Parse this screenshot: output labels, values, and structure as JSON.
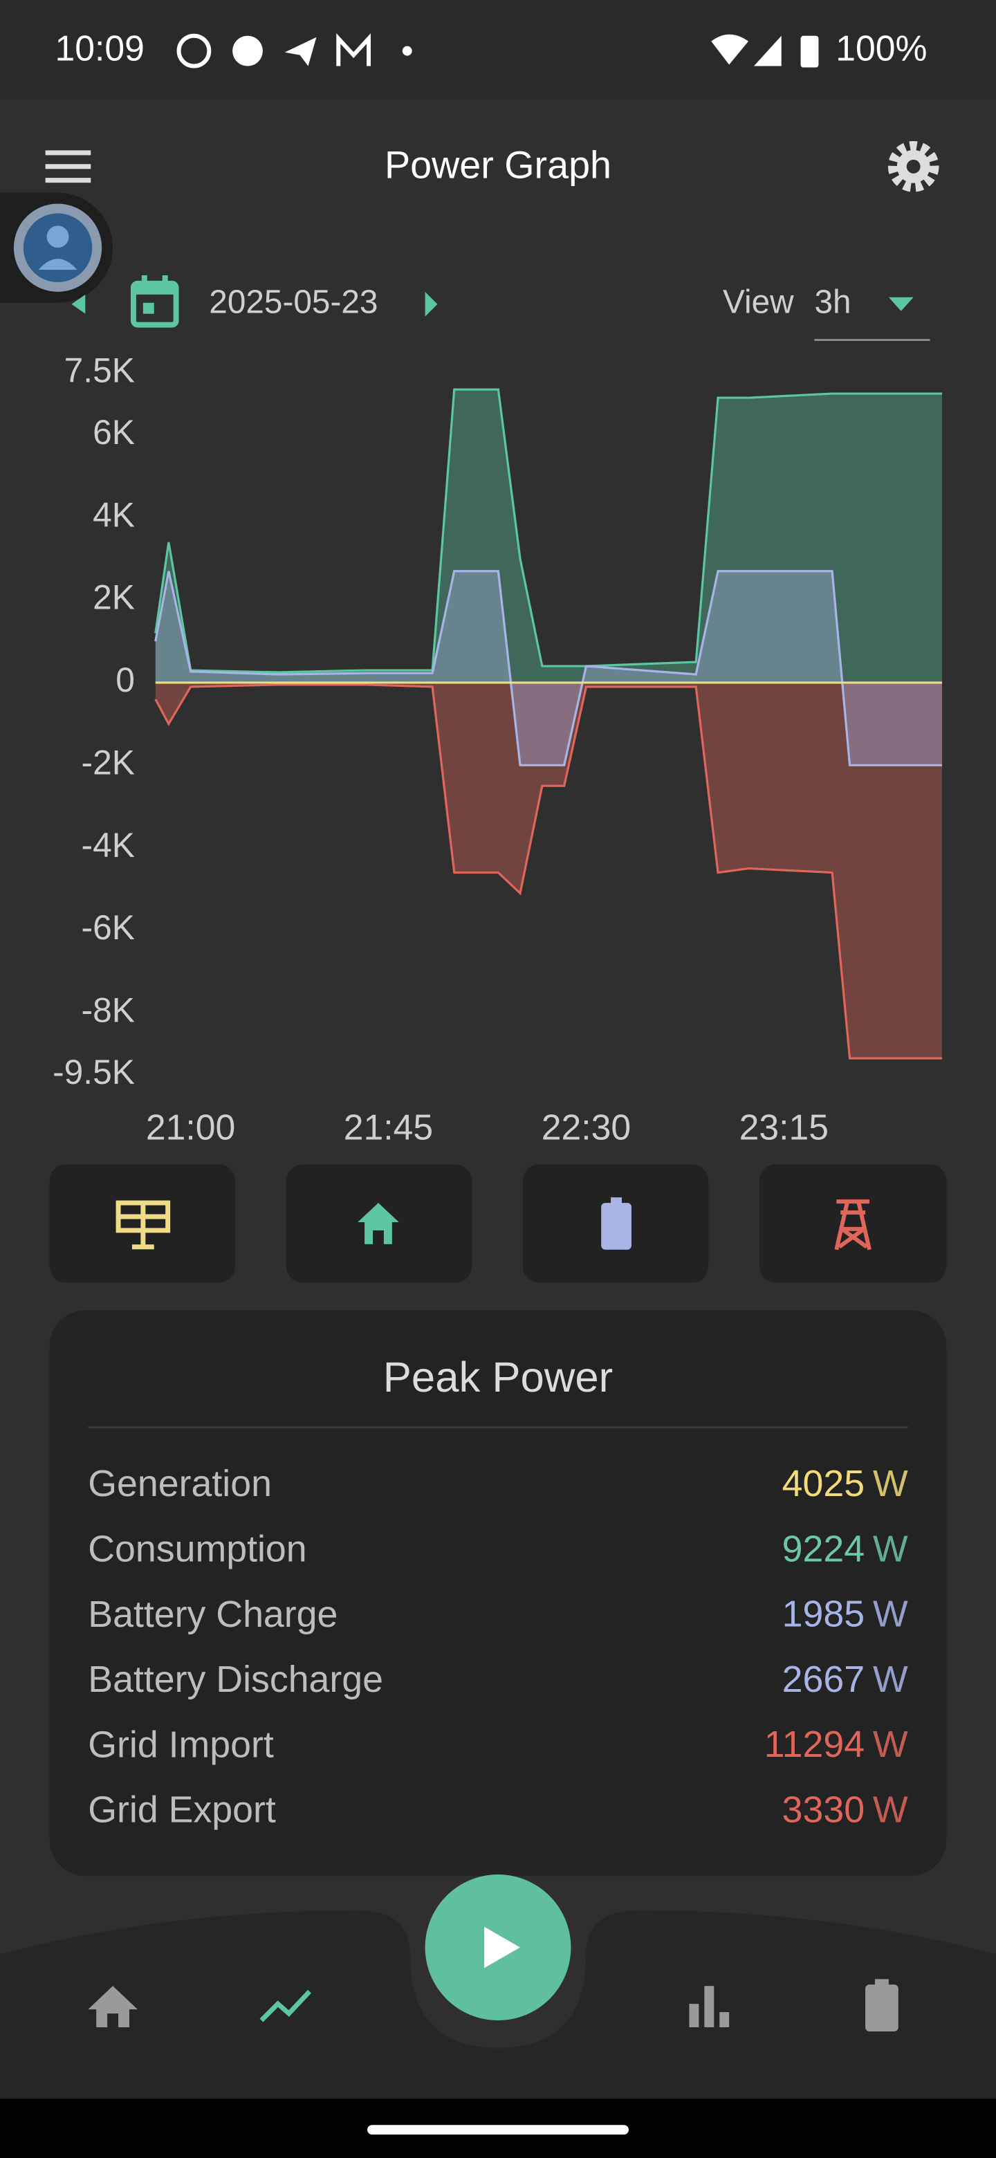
{
  "status_bar": {
    "time": "10:09",
    "battery": "100%"
  },
  "app_bar": {
    "title": "Power Graph"
  },
  "date_bar": {
    "date": "2025-05-23",
    "view_label": "View",
    "view_value": "3h"
  },
  "chart_data": {
    "type": "area",
    "x": [
      "20:52",
      "20:55",
      "21:00",
      "21:20",
      "21:40",
      "21:55",
      "22:00",
      "22:10",
      "22:15",
      "22:20",
      "22:25",
      "22:30",
      "22:55",
      "23:00",
      "23:07",
      "23:26",
      "23:30",
      "23:51"
    ],
    "xlim": [
      "20:52",
      "23:52"
    ],
    "xticks": [
      "21:00",
      "21:45",
      "22:30",
      "23:15"
    ],
    "ylim": [
      -9500,
      7500
    ],
    "yticks": [
      {
        "value": 7500,
        "label": "7.5K"
      },
      {
        "value": 6000,
        "label": "6K"
      },
      {
        "value": 4000,
        "label": "4K"
      },
      {
        "value": 2000,
        "label": "2K"
      },
      0,
      {
        "value": -2000,
        "label": "-2K"
      },
      {
        "value": -4000,
        "label": "-4K"
      },
      {
        "value": -6000,
        "label": "-6K"
      },
      {
        "value": -8000,
        "label": "-8K"
      },
      {
        "value": -9500,
        "label": "-9.5K"
      }
    ],
    "series": [
      {
        "color": "#5cc6a0",
        "values": [
          1200,
          3400,
          300,
          250,
          300,
          300,
          7100,
          7100,
          3000,
          400,
          400,
          400,
          500,
          6900,
          6900,
          7000,
          7000,
          7000
        ]
      },
      {
        "color": "#e0665c",
        "values": [
          -400,
          -1000,
          -100,
          -50,
          -50,
          -100,
          -4600,
          -4600,
          -5100,
          -2500,
          -2500,
          -100,
          -100,
          -4600,
          -4500,
          -4600,
          -9100,
          -9100
        ]
      },
      {
        "color": "#a9b4e6",
        "values": [
          1000,
          2700,
          270,
          200,
          230,
          230,
          2700,
          2700,
          -2000,
          -2000,
          -2000,
          400,
          200,
          2700,
          2700,
          2700,
          -2000,
          -2000
        ]
      },
      {
        "color": "#f0dc84",
        "values": [
          0,
          0,
          0,
          0,
          0,
          0,
          0,
          0,
          0,
          0,
          0,
          0,
          0,
          0,
          0,
          0,
          0,
          0
        ]
      }
    ]
  },
  "peak_power": {
    "title": "Peak Power",
    "rows": [
      {
        "label": "Generation",
        "value": 4025,
        "unit": "W",
        "color": "#f2dc7a"
      },
      {
        "label": "Consumption",
        "value": 9224,
        "unit": "W",
        "color": "#6cc7a5"
      },
      {
        "label": "Battery Charge",
        "value": 1985,
        "unit": "W",
        "color": "#a9b4e6"
      },
      {
        "label": "Battery Discharge",
        "value": 2667,
        "unit": "W",
        "color": "#a9b4e6"
      },
      {
        "label": "Grid Import",
        "value": 11294,
        "unit": "W",
        "color": "#e0665c"
      },
      {
        "label": "Grid Export",
        "value": 3330,
        "unit": "W",
        "color": "#e0665c"
      }
    ]
  }
}
